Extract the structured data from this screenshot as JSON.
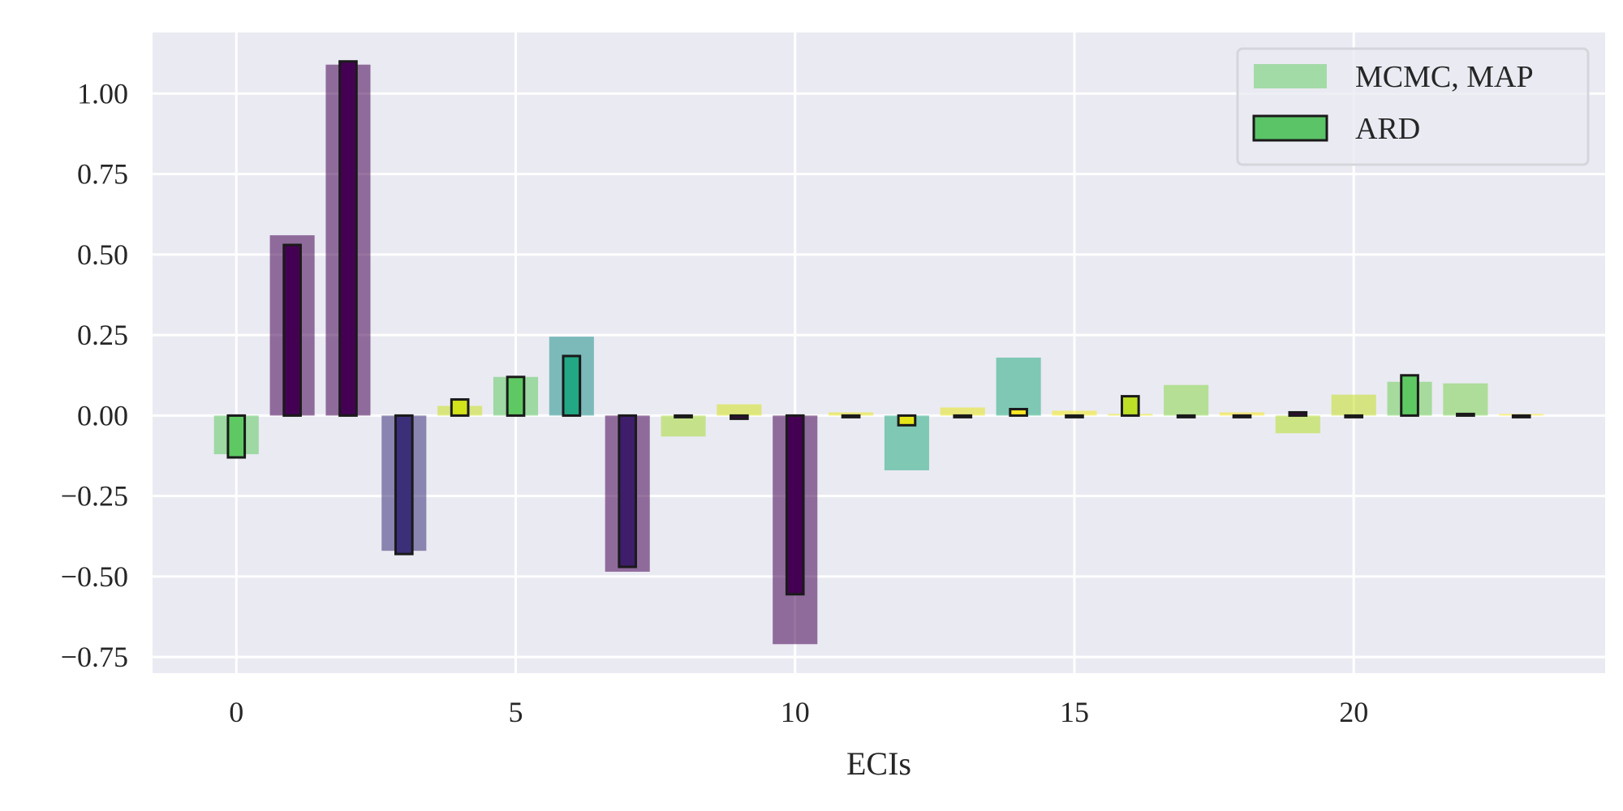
{
  "chart_data": {
    "type": "bar",
    "title": "",
    "xlabel": "ECIs",
    "ylabel": "",
    "xlim": [
      -1.5,
      24.5
    ],
    "ylim": [
      -0.8,
      1.19
    ],
    "xticks": [
      0,
      5,
      10,
      15,
      20
    ],
    "xtick_labels": [
      "0",
      "5",
      "10",
      "15",
      "20"
    ],
    "yticks": [
      -0.75,
      -0.5,
      -0.25,
      0.0,
      0.25,
      0.5,
      0.75,
      1.0
    ],
    "ytick_labels": [
      "−0.75",
      "−0.50",
      "−0.25",
      "0.00",
      "0.25",
      "0.50",
      "0.75",
      "1.00"
    ],
    "grid": true,
    "legend_position": "top-right",
    "x": [
      0,
      1,
      2,
      3,
      4,
      5,
      6,
      7,
      8,
      9,
      10,
      11,
      12,
      13,
      14,
      15,
      16,
      17,
      18,
      19,
      20,
      21,
      22,
      23
    ],
    "series": [
      {
        "name": "MCMC, MAP",
        "style": "wide-translucent",
        "values": [
          -0.12,
          0.56,
          1.09,
          -0.42,
          0.03,
          0.12,
          0.245,
          -0.485,
          -0.065,
          0.035,
          -0.71,
          0.01,
          -0.17,
          0.025,
          0.18,
          0.015,
          0.005,
          0.095,
          0.01,
          -0.055,
          0.065,
          0.105,
          0.1,
          0.005
        ],
        "colors": [
          "#5ec962",
          "#440154",
          "#440154",
          "#3b2f7a",
          "#c8e020",
          "#5ec962",
          "#21918c",
          "#440154",
          "#a5db36",
          "#d2e21b",
          "#440154",
          "#e5e419",
          "#25ab82",
          "#e5e419",
          "#25ab82",
          "#f0e91a",
          "#e5e419",
          "#86d549",
          "#f5e61f",
          "#b5de2b",
          "#c2df23",
          "#6ece58",
          "#7ad151",
          "#fde725"
        ]
      },
      {
        "name": "ARD",
        "style": "narrow-outlined",
        "values": [
          -0.13,
          0.53,
          1.1,
          -0.43,
          0.05,
          0.12,
          0.185,
          -0.47,
          -0.005,
          -0.01,
          -0.555,
          -0.005,
          -0.03,
          -0.005,
          0.02,
          -0.005,
          0.06,
          -0.005,
          -0.005,
          0.01,
          -0.005,
          0.125,
          0.005,
          -0.005
        ],
        "colors": [
          "#5ec962",
          "#440154",
          "#440154",
          "#3b2f7a",
          "#d2e21b",
          "#5ec962",
          "#22a884",
          "#3e1d6b",
          "#440154",
          "#440154",
          "#440154",
          "#440154",
          "#e5e419",
          "#440154",
          "#fde725",
          "#440154",
          "#bddf26",
          "#440154",
          "#440154",
          "#440154",
          "#440154",
          "#5ec962",
          "#440154",
          "#440154"
        ]
      }
    ],
    "legend": {
      "entries": [
        {
          "label": "MCMC, MAP",
          "color": "#a3dba7"
        },
        {
          "label": "ARD",
          "color": "#5ac466"
        }
      ]
    }
  }
}
